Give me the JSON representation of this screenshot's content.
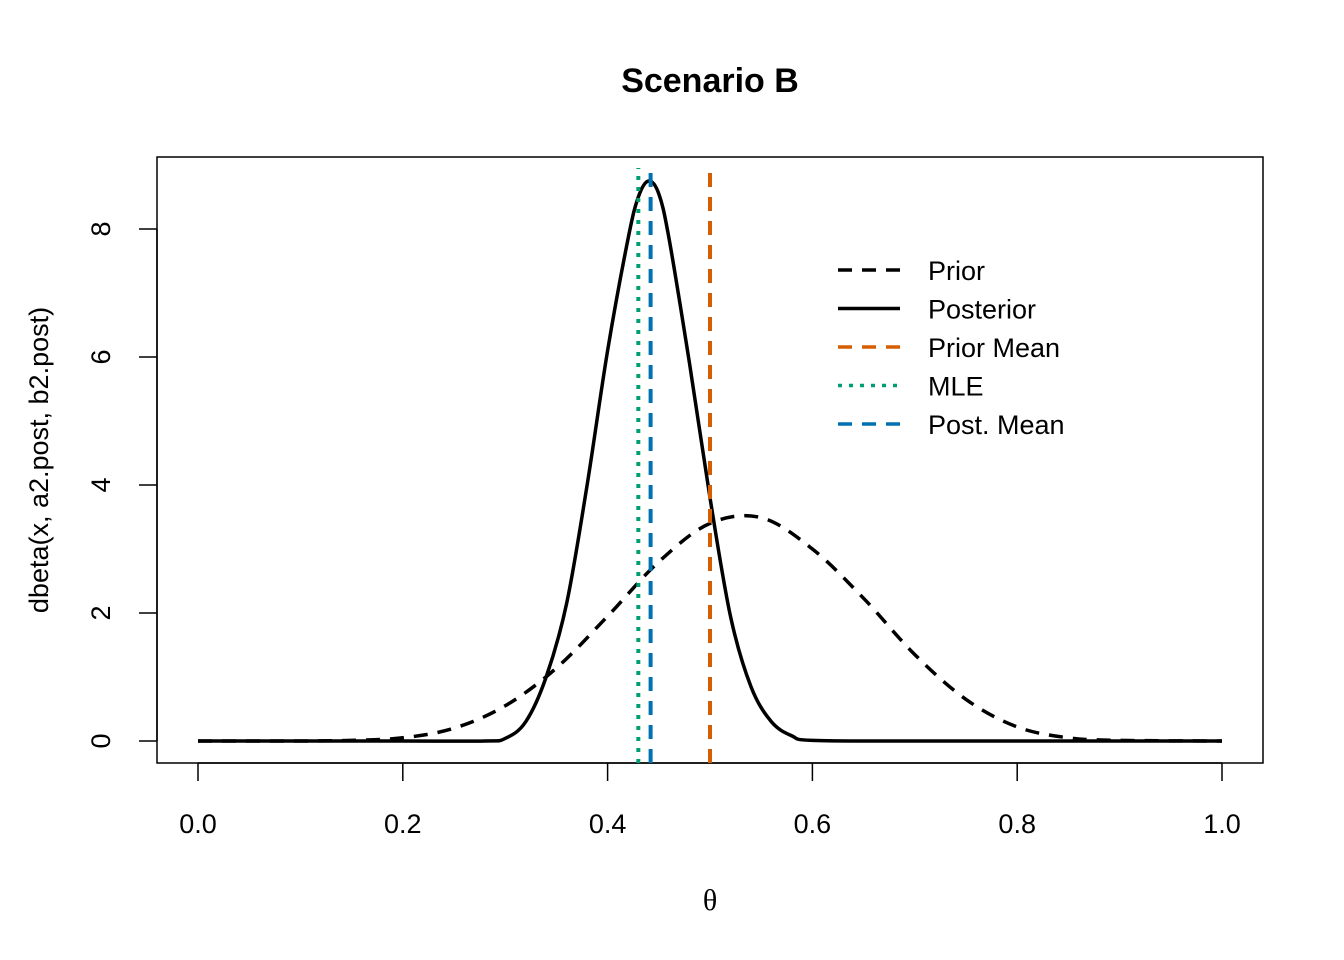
{
  "chart_data": {
    "type": "line",
    "title": "Scenario B",
    "xlabel": "θ",
    "ylabel": "dbeta(x, a2.post, b2.post)",
    "xlim": [
      0,
      1
    ],
    "ylim": [
      0,
      8.8
    ],
    "x_ticks": [
      0.0,
      0.2,
      0.4,
      0.6,
      0.8,
      1.0
    ],
    "x_tick_labels": [
      "0.0",
      "0.2",
      "0.4",
      "0.6",
      "0.8",
      "1.0"
    ],
    "y_ticks": [
      0,
      2,
      4,
      6,
      8
    ],
    "y_tick_labels": [
      "0",
      "2",
      "4",
      "6",
      "8"
    ],
    "grid": false,
    "legend_position": "top-right",
    "series": [
      {
        "name": "Prior",
        "style": "dashed",
        "color": "#000000",
        "x": [
          0.0,
          0.1,
          0.15,
          0.2,
          0.25,
          0.3,
          0.35,
          0.4,
          0.45,
          0.5,
          0.55,
          0.6,
          0.65,
          0.7,
          0.75,
          0.8,
          0.85,
          0.9,
          1.0
        ],
        "y": [
          0.0,
          0.0,
          0.01,
          0.05,
          0.2,
          0.55,
          1.14,
          1.95,
          2.8,
          3.4,
          3.49,
          3.0,
          2.23,
          1.35,
          0.65,
          0.22,
          0.05,
          0.01,
          0.0
        ]
      },
      {
        "name": "Posterior",
        "style": "solid",
        "color": "#000000",
        "x": [
          0.0,
          0.2,
          0.28,
          0.3,
          0.32,
          0.34,
          0.36,
          0.38,
          0.4,
          0.42,
          0.43,
          0.44,
          0.45,
          0.46,
          0.48,
          0.5,
          0.52,
          0.54,
          0.56,
          0.58,
          0.6,
          0.7,
          1.0
        ],
        "y": [
          0.0,
          0.0,
          0.0,
          0.04,
          0.3,
          1.0,
          2.15,
          4.0,
          6.1,
          7.85,
          8.5,
          8.75,
          8.55,
          7.85,
          5.9,
          3.8,
          1.95,
          0.85,
          0.3,
          0.08,
          0.01,
          0.0,
          0.0
        ]
      }
    ],
    "vlines": [
      {
        "name": "Prior Mean",
        "x": 0.5,
        "style": "dashed",
        "color": "#d55e00"
      },
      {
        "name": "MLE",
        "x": 0.43,
        "style": "dotted",
        "color": "#009e73"
      },
      {
        "name": "Post. Mean",
        "x": 0.442,
        "style": "dashed",
        "color": "#0072b2"
      }
    ],
    "legend": [
      {
        "label": "Prior",
        "style": "dashed",
        "color": "#000000"
      },
      {
        "label": "Posterior",
        "style": "solid",
        "color": "#000000"
      },
      {
        "label": "Prior Mean",
        "style": "dashed",
        "color": "#d55e00"
      },
      {
        "label": "MLE",
        "style": "dotted",
        "color": "#009e73"
      },
      {
        "label": "Post. Mean",
        "style": "dashed",
        "color": "#0072b2"
      }
    ]
  }
}
